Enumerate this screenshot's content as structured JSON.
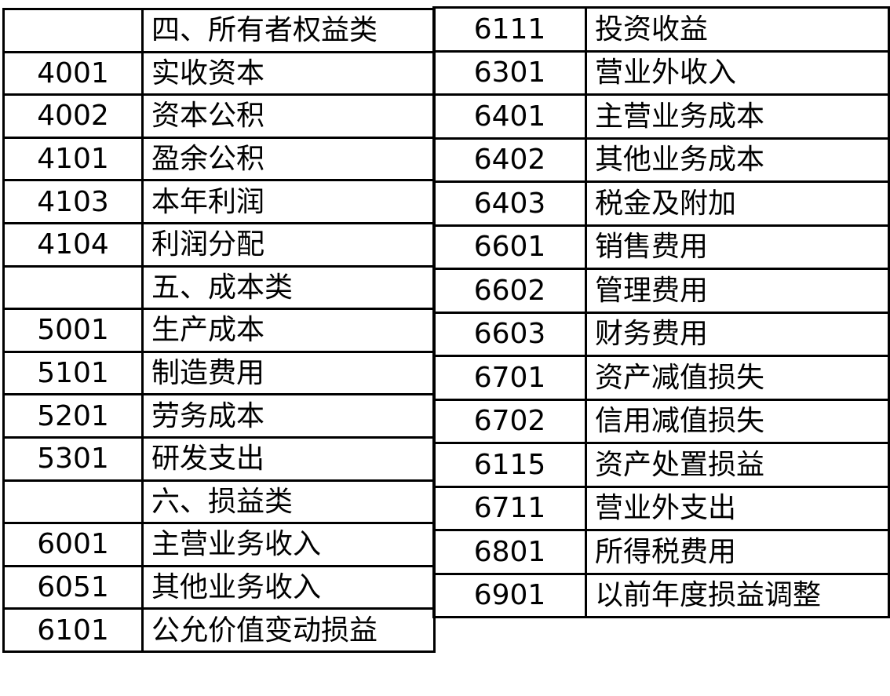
{
  "left_table": [
    {
      "code": "",
      "name": "四、所有者权益类"
    },
    {
      "code": "4001",
      "name": "实收资本"
    },
    {
      "code": "4002",
      "name": "资本公积"
    },
    {
      "code": "4101",
      "name": "盈余公积"
    },
    {
      "code": "4103",
      "name": "本年利润"
    },
    {
      "code": "4104",
      "name": "利润分配"
    },
    {
      "code": "",
      "name": "五、成本类"
    },
    {
      "code": "5001",
      "name": "生产成本"
    },
    {
      "code": "5101",
      "name": "制造费用"
    },
    {
      "code": "5201",
      "name": "劳务成本"
    },
    {
      "code": "5301",
      "name": "研发支出"
    },
    {
      "code": "",
      "name": "六、损益类"
    },
    {
      "code": "6001",
      "name": "主营业务收入"
    },
    {
      "code": "6051",
      "name": "其他业务收入"
    },
    {
      "code": "6101",
      "name": "公允价值变动损益"
    }
  ],
  "right_table": [
    {
      "code": "6111",
      "name": "投资收益"
    },
    {
      "code": "6301",
      "name": "营业外收入"
    },
    {
      "code": "6401",
      "name": "主营业务成本"
    },
    {
      "code": "6402",
      "name": "其他业务成本"
    },
    {
      "code": "6403",
      "name": "税金及附加"
    },
    {
      "code": "6601",
      "name": "销售费用"
    },
    {
      "code": "6602",
      "name": "管理费用"
    },
    {
      "code": "6603",
      "name": "财务费用"
    },
    {
      "code": "6701",
      "name": "资产减值损失"
    },
    {
      "code": "6702",
      "name": "信用减值损失"
    },
    {
      "code": "6115",
      "name": "资产处置损益"
    },
    {
      "code": "6711",
      "name": "营业外支出"
    },
    {
      "code": "6801",
      "name": "所得税费用"
    },
    {
      "code": "6901",
      "name": "以前年度损益调整"
    }
  ]
}
